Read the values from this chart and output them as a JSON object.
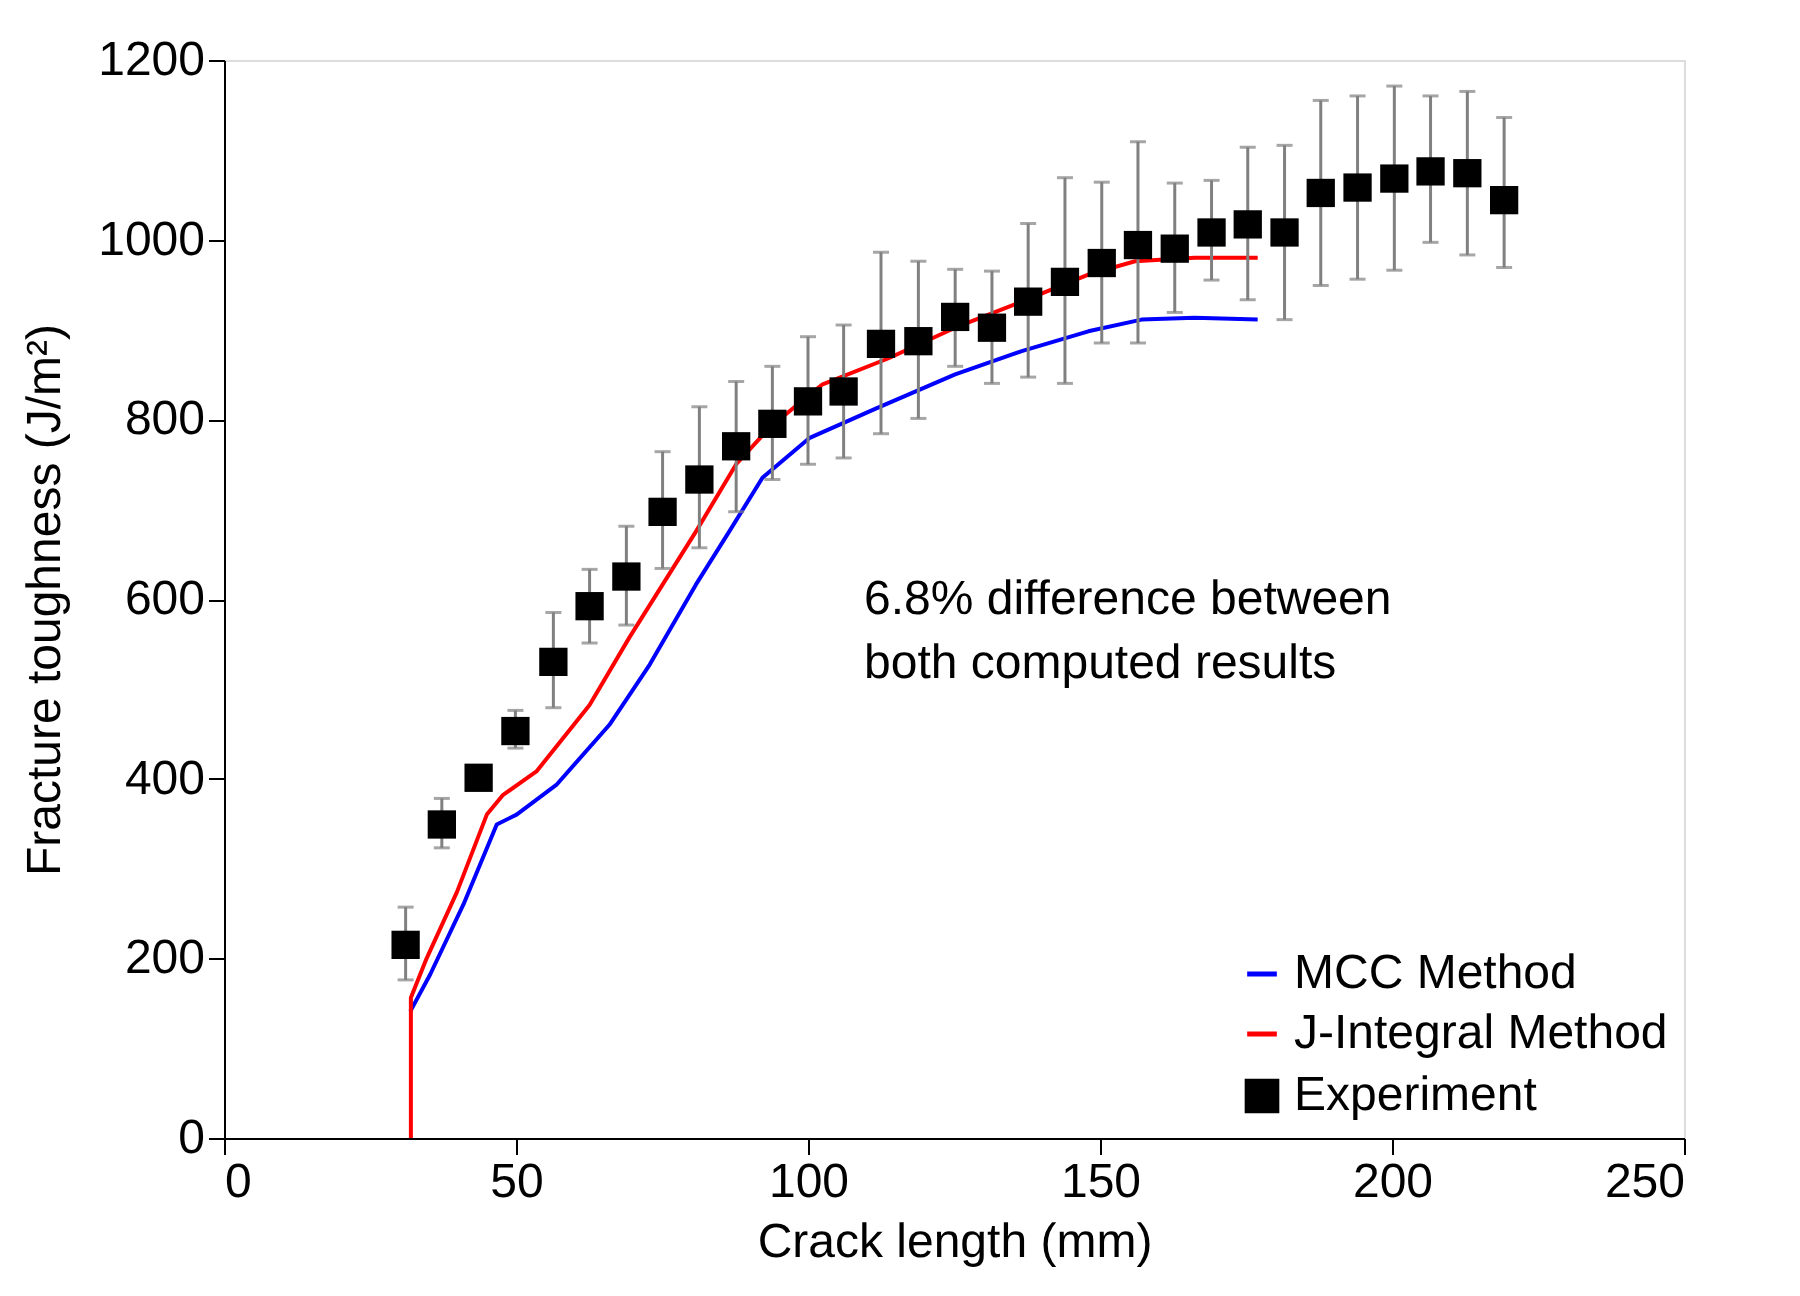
{
  "chart_data": {
    "type": "line",
    "xlabel": "Crack length (mm)",
    "ylabel": "Fracture toughness (J/m²)",
    "xlim": [
      0,
      250
    ],
    "xticks": [
      0,
      50,
      100,
      150,
      200,
      250
    ],
    "ylim": [
      0,
      1200
    ],
    "yticks": [
      0,
      200,
      400,
      600,
      800,
      1000,
      1200
    ],
    "grid": false,
    "legend": "bottom right",
    "line_style": "solid",
    "annotations": [
      "6.8% difference between\nboth computed results"
    ],
    "series": [
      {
        "name": "MCC Method",
        "color": "#0000ff",
        "marker": "none",
        "x": [
          31.9,
          35.3,
          41,
          46.7,
          50.1,
          56.9,
          66,
          72.9,
          80.8,
          86.5,
          92.2,
          100.2,
          111.6,
          125.2,
          136.6,
          148,
          157.1,
          166.2,
          177
        ],
        "values": [
          141,
          182,
          260,
          349,
          360,
          393,
          460,
          527,
          616,
          675,
          735,
          779,
          812,
          850,
          876,
          898,
          911,
          913,
          911
        ]
      },
      {
        "name": "J-Integral Method",
        "color": "#ff0000",
        "marker": "none",
        "x": [
          32,
          32,
          34.7,
          39.9,
          45,
          47.8,
          53.5,
          62.6,
          69.4,
          75.1,
          80.8,
          87.7,
          93.3,
          100.2,
          102.5,
          113.8,
          125.2,
          136.6,
          148,
          156,
          166.2,
          177
        ],
        "values": [
          0,
          156,
          200,
          274,
          360,
          382,
          408,
          482,
          557,
          616,
          675,
          750,
          790,
          827,
          839,
          868,
          902,
          931,
          961,
          976,
          980,
          980
        ]
      },
      {
        "name": "Experiment",
        "type": "scatter",
        "color": "#000000",
        "marker": "square",
        "x": [
          31.1,
          37.3,
          43.6,
          49.9,
          56.4,
          62.6,
          68.9,
          75.1,
          81.4,
          87.7,
          93.9,
          100,
          106.1,
          112.5,
          118.9,
          125.2,
          131.5,
          137.7,
          144,
          150.3,
          156.5,
          162.8,
          169.1,
          175.3,
          181.6,
          187.8,
          194.1,
          200.4,
          206.6,
          212.9,
          219.2
        ],
        "values": [
          215,
          349,
          401,
          453,
          530,
          592,
          625,
          697,
          733,
          770,
          795,
          820,
          831,
          884,
          887,
          914,
          902,
          931,
          953,
          974,
          994,
          990,
          1008,
          1017,
          1008,
          1052,
          1058,
          1068,
          1076,
          1074,
          1044
        ],
        "errors": [
          [
            176,
            257
          ],
          [
            323,
            378
          ],
          null,
          [
            434,
            476
          ],
          [
            479,
            585
          ],
          [
            551,
            633
          ],
          [
            571,
            681
          ],
          [
            634,
            764
          ],
          [
            657,
            814
          ],
          [
            697,
            842
          ],
          [
            733,
            859
          ],
          [
            750,
            892
          ],
          [
            757,
            905
          ],
          [
            784,
            986
          ],
          [
            801,
            976
          ],
          [
            859,
            967
          ],
          [
            840,
            965
          ],
          [
            847,
            1018
          ],
          [
            840,
            1069
          ],
          [
            885,
            1064
          ],
          [
            885,
            1109
          ],
          [
            919,
            1063
          ],
          [
            955,
            1066
          ],
          [
            933,
            1103
          ],
          [
            911,
            1105
          ],
          [
            949,
            1155
          ],
          [
            956,
            1160
          ],
          [
            966,
            1171
          ],
          [
            997,
            1160
          ],
          [
            983,
            1165
          ],
          [
            969,
            1136
          ]
        ]
      }
    ]
  }
}
